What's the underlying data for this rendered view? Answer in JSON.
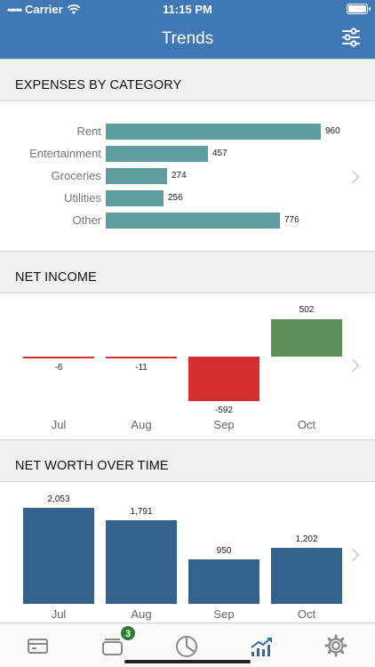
{
  "status_bar": {
    "carrier": "Carrier",
    "time": "11:15 PM"
  },
  "nav": {
    "title": "Trends",
    "filter_icon": "sliders-icon"
  },
  "sections": {
    "expenses": "EXPENSES BY CATEGORY",
    "net_income": "NET INCOME",
    "net_worth": "NET WORTH OVER TIME"
  },
  "chart_data": [
    {
      "type": "bar",
      "orientation": "horizontal",
      "categories": [
        "Rent",
        "Entertainment",
        "Groceries",
        "Utilities",
        "Other"
      ],
      "values": [
        960,
        457,
        274,
        256,
        776
      ],
      "labels": [
        "960",
        "457",
        "274",
        "256",
        "776"
      ],
      "color": "#5f9ea0"
    },
    {
      "type": "bar",
      "categories": [
        "Jul",
        "Aug",
        "Sep",
        "Oct"
      ],
      "values": [
        -6,
        -11,
        -592,
        502
      ],
      "labels": [
        "-6",
        "-11",
        "-592",
        "502"
      ],
      "colors": {
        "negative": "#d32f2f",
        "positive": "#5b8f57"
      }
    },
    {
      "type": "bar",
      "categories": [
        "Jul",
        "Aug",
        "Sep",
        "Oct"
      ],
      "values": [
        2053,
        1791,
        950,
        1202
      ],
      "labels": [
        "2,053",
        "1,791",
        "950",
        "1,202"
      ],
      "color": "#34628f"
    }
  ],
  "tabbar": {
    "items": [
      {
        "name": "accounts",
        "icon": "credit-card-icon"
      },
      {
        "name": "transactions",
        "icon": "inbox-tray-icon",
        "badge": "3"
      },
      {
        "name": "budget",
        "icon": "pie-chart-icon"
      },
      {
        "name": "trends",
        "icon": "trend-chart-icon",
        "active": true
      },
      {
        "name": "settings",
        "icon": "gear-icon"
      }
    ]
  },
  "colors": {
    "brand": "#3f78b5",
    "active_tab": "#2f6aa8",
    "inactive_tab": "#8a8a8a"
  }
}
